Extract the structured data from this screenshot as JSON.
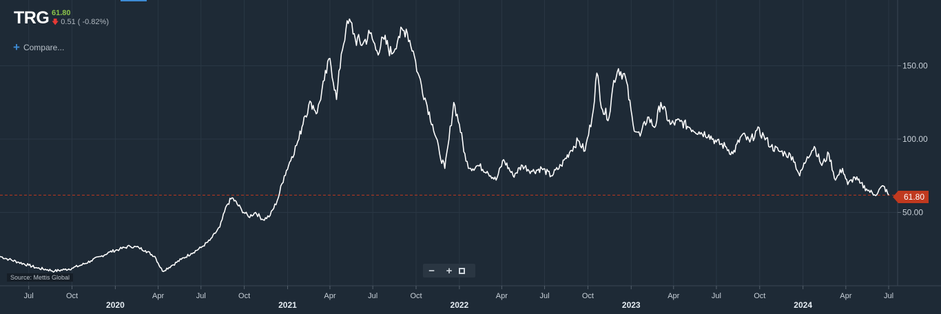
{
  "ticker": {
    "symbol": "TRG",
    "price": "61.80",
    "change": "0.51 ( -0.82%)"
  },
  "compare_label": "Compare...",
  "source": "Source: Mettis Global",
  "price_tag": "61.80",
  "colors": {
    "background": "#1e2a36",
    "line": "#ffffff",
    "last_price": "#c0391f",
    "up": "#8bc34a",
    "down": "#e53935"
  },
  "chart_data": {
    "type": "line",
    "title": "",
    "xlabel": "",
    "ylabel": "",
    "ylim": [
      0,
      185
    ],
    "grid": true,
    "y_ticks": [
      {
        "value": 150,
        "label": "150.00"
      },
      {
        "value": 100,
        "label": "100.00"
      },
      {
        "value": 50,
        "label": "50.00"
      }
    ],
    "x_ticks": [
      {
        "date": "2019-07-01",
        "label": "Jul",
        "year": ""
      },
      {
        "date": "2019-10-01",
        "label": "Oct",
        "year": ""
      },
      {
        "date": "2020-01-01",
        "label": "",
        "year": "2020"
      },
      {
        "date": "2020-04-01",
        "label": "Apr",
        "year": ""
      },
      {
        "date": "2020-07-01",
        "label": "Jul",
        "year": ""
      },
      {
        "date": "2020-10-01",
        "label": "Oct",
        "year": ""
      },
      {
        "date": "2021-01-01",
        "label": "",
        "year": "2021"
      },
      {
        "date": "2021-04-01",
        "label": "Apr",
        "year": ""
      },
      {
        "date": "2021-07-01",
        "label": "Jul",
        "year": ""
      },
      {
        "date": "2021-10-01",
        "label": "Oct",
        "year": ""
      },
      {
        "date": "2022-01-01",
        "label": "",
        "year": "2022"
      },
      {
        "date": "2022-04-01",
        "label": "Apr",
        "year": ""
      },
      {
        "date": "2022-07-01",
        "label": "Jul",
        "year": ""
      },
      {
        "date": "2022-10-01",
        "label": "Oct",
        "year": ""
      },
      {
        "date": "2023-01-01",
        "label": "",
        "year": "2023"
      },
      {
        "date": "2023-04-01",
        "label": "Apr",
        "year": ""
      },
      {
        "date": "2023-07-01",
        "label": "Jul",
        "year": ""
      },
      {
        "date": "2023-10-01",
        "label": "Oct",
        "year": ""
      },
      {
        "date": "2024-01-01",
        "label": "",
        "year": "2024"
      },
      {
        "date": "2024-04-01",
        "label": "Apr",
        "year": ""
      },
      {
        "date": "2024-07-01",
        "label": "Jul",
        "year": ""
      }
    ],
    "last_price": 61.8,
    "series": [
      {
        "x": [
          "2019-05-01",
          "2019-05-20",
          "2019-06-10",
          "2019-07-01",
          "2019-07-20",
          "2019-08-10",
          "2019-08-25",
          "2019-09-15",
          "2019-10-01",
          "2019-10-20",
          "2019-11-10",
          "2019-12-01",
          "2019-12-20",
          "2020-01-10",
          "2020-02-01",
          "2020-02-20",
          "2020-03-05",
          "2020-03-25",
          "2020-04-10",
          "2020-05-01",
          "2020-05-20",
          "2020-06-10",
          "2020-07-01",
          "2020-07-20",
          "2020-08-10",
          "2020-08-25",
          "2020-09-05",
          "2020-09-25",
          "2020-10-10",
          "2020-10-25",
          "2020-11-10",
          "2020-11-25",
          "2020-12-10",
          "2020-12-25",
          "2021-01-10",
          "2021-01-25",
          "2021-02-05",
          "2021-02-20",
          "2021-03-05",
          "2021-03-20",
          "2021-04-01",
          "2021-04-15",
          "2021-04-25",
          "2021-05-05",
          "2021-05-15",
          "2021-05-25",
          "2021-06-10",
          "2021-06-25",
          "2021-07-10",
          "2021-07-25",
          "2021-08-10",
          "2021-08-25",
          "2021-09-10",
          "2021-09-25",
          "2021-10-05",
          "2021-10-20",
          "2021-11-05",
          "2021-11-20",
          "2021-12-01",
          "2021-12-10",
          "2021-12-20",
          "2022-01-01",
          "2022-01-15",
          "2022-01-25",
          "2022-02-10",
          "2022-03-01",
          "2022-03-20",
          "2022-04-05",
          "2022-04-25",
          "2022-05-15",
          "2022-06-05",
          "2022-06-25",
          "2022-07-15",
          "2022-08-05",
          "2022-08-25",
          "2022-09-10",
          "2022-09-25",
          "2022-10-10",
          "2022-10-20",
          "2022-11-01",
          "2022-11-15",
          "2022-11-25",
          "2022-12-05",
          "2022-12-20",
          "2023-01-05",
          "2023-01-20",
          "2023-02-05",
          "2023-02-20",
          "2023-03-05",
          "2023-03-25",
          "2023-04-15",
          "2023-05-05",
          "2023-05-25",
          "2023-06-15",
          "2023-07-01",
          "2023-07-20",
          "2023-08-05",
          "2023-08-25",
          "2023-09-10",
          "2023-09-25",
          "2023-10-10",
          "2023-10-25",
          "2023-11-10",
          "2023-11-25",
          "2023-12-10",
          "2023-12-25",
          "2024-01-10",
          "2024-01-25",
          "2024-02-10",
          "2024-02-25",
          "2024-03-10",
          "2024-03-25",
          "2024-04-05",
          "2024-04-20",
          "2024-05-01",
          "2024-05-15",
          "2024-06-01",
          "2024-06-20",
          "2024-07-01"
        ],
        "y": [
          20,
          18,
          16,
          14,
          12,
          11,
          10,
          11,
          12,
          14,
          17,
          20,
          23,
          25,
          27,
          26,
          24,
          20,
          10,
          14,
          18,
          22,
          26,
          31,
          40,
          55,
          60,
          52,
          47,
          50,
          45,
          48,
          58,
          75,
          88,
          100,
          115,
          125,
          118,
          140,
          155,
          127,
          158,
          175,
          180,
          168,
          165,
          172,
          160,
          168,
          158,
          170,
          175,
          160,
          145,
          128,
          110,
          90,
          80,
          100,
          125,
          110,
          85,
          80,
          82,
          78,
          72,
          86,
          75,
          82,
          78,
          80,
          75,
          82,
          92,
          99,
          92,
          115,
          145,
          120,
          115,
          140,
          148,
          142,
          110,
          102,
          115,
          108,
          125,
          110,
          112,
          108,
          105,
          103,
          98,
          95,
          90,
          103,
          98,
          106,
          102,
          95,
          92,
          90,
          88,
          75,
          88,
          95,
          82,
          90,
          72,
          80,
          69,
          74,
          70,
          66,
          62,
          68,
          61.8
        ]
      }
    ]
  }
}
